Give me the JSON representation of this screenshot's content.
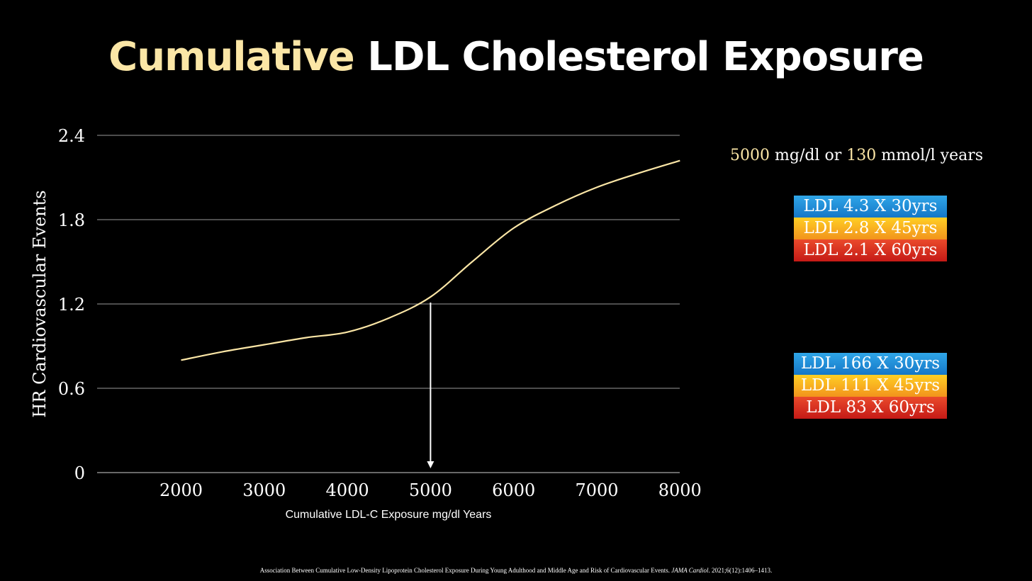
{
  "title": {
    "accent": "Cumulative",
    "rest": "LDL Cholesterol Exposure"
  },
  "colors": {
    "accent": "#fbe6a6",
    "line": "#fbe6a6",
    "grid": "#9a9a9a",
    "blue": "#1e90dd",
    "orange": "#fbb11f",
    "red": "#d62f1f"
  },
  "chart_data": {
    "type": "line",
    "title": "",
    "xlabel": "Cumulative LDL-C Exposure mg/dl Years",
    "ylabel": "HR Cardiovascular Events",
    "xlim": [
      1000,
      8000
    ],
    "ylim": [
      0,
      2.4
    ],
    "x_ticks": [
      2000,
      3000,
      4000,
      5000,
      6000,
      7000,
      8000
    ],
    "x_tick_labels": [
      "2000",
      "3000",
      "4000",
      "5000",
      "6000",
      "7000",
      "8000"
    ],
    "y_ticks": [
      0,
      0.6,
      1.2,
      1.8,
      2.4
    ],
    "y_tick_labels": [
      "0",
      "0.6",
      "1.2",
      "1.8",
      "2.4"
    ],
    "grid": "horizontal",
    "series": [
      {
        "x": [
          2000,
          2500,
          3000,
          3500,
          4000,
          4500,
          5000,
          5500,
          6000,
          6500,
          7000,
          7500,
          8000
        ],
        "y": [
          0.8,
          0.86,
          0.91,
          0.96,
          1.0,
          1.1,
          1.25,
          1.5,
          1.74,
          1.9,
          2.03,
          2.13,
          2.22
        ]
      }
    ],
    "annotations": [
      {
        "type": "arrow",
        "x": 5000,
        "y_from": 1.21,
        "y_to": 0
      }
    ]
  },
  "note": {
    "v1": "5000",
    "t1": " mg/dl or ",
    "v2": "130",
    "t2": " mmol/l years"
  },
  "box1": [
    "LDL 4.3 X 30yrs",
    "LDL 2.8 X 45yrs",
    "LDL 2.1 X 60yrs"
  ],
  "box2": [
    "LDL 166 X 30yrs",
    "LDL 111 X 45yrs",
    "LDL 83 X 60yrs"
  ],
  "citation": {
    "text": "Association Between Cumulative Low-Density Lipoprotein Cholesterol Exposure During Young Adulthood and Middle Age and Risk of Cardiovascular Events. ",
    "journal": "JAMA Cardiol",
    "ref": ". 2021;6(12):1406–1413."
  }
}
